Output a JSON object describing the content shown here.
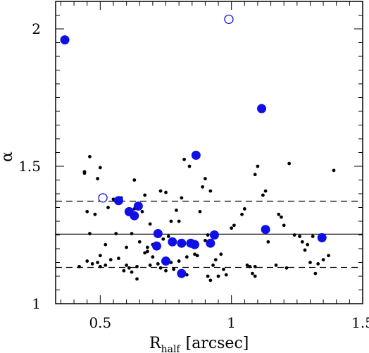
{
  "chart_data": {
    "type": "scatter",
    "xlabel": "R",
    "xlabel_subscript": "half",
    "xlabel_unit": "[arcsec]",
    "ylabel": "α",
    "xlim": [
      0.33,
      1.5
    ],
    "ylim": [
      1.0,
      2.1
    ],
    "x_ticks_major": [
      0.5,
      1.0,
      1.5
    ],
    "x_tick_labels": [
      "0.5",
      "1",
      "1.5"
    ],
    "y_ticks_major": [
      1.0,
      1.5,
      2.0
    ],
    "y_tick_labels": [
      "1",
      "1.5",
      "2"
    ],
    "grid": false,
    "reference_lines": [
      {
        "y": 1.373,
        "style": "dashed"
      },
      {
        "y": 1.253,
        "style": "solid"
      },
      {
        "y": 1.132,
        "style": "dashed"
      }
    ],
    "series": [
      {
        "marker": "small-dot",
        "color": "#000000",
        "points": [
          [
            0.42,
            1.135
          ],
          [
            0.44,
            1.48
          ],
          [
            0.44,
            1.475
          ],
          [
            0.45,
            1.155
          ],
          [
            0.45,
            1.335
          ],
          [
            0.46,
            1.535
          ],
          [
            0.46,
            1.255
          ],
          [
            0.47,
            1.145
          ],
          [
            0.48,
            1.325
          ],
          [
            0.49,
            1.15
          ],
          [
            0.49,
            1.455
          ],
          [
            0.5,
            1.135
          ],
          [
            0.5,
            1.495
          ],
          [
            0.5,
            1.175
          ],
          [
            0.52,
            1.14
          ],
          [
            0.52,
            1.215
          ],
          [
            0.53,
            1.35
          ],
          [
            0.54,
            1.16
          ],
          [
            0.55,
            1.38
          ],
          [
            0.56,
            1.255
          ],
          [
            0.57,
            1.165
          ],
          [
            0.58,
            1.385
          ],
          [
            0.59,
            1.12
          ],
          [
            0.6,
            1.14
          ],
          [
            0.6,
            1.205
          ],
          [
            0.61,
            1.13
          ],
          [
            0.62,
            1.115
          ],
          [
            0.62,
            1.255
          ],
          [
            0.63,
            1.345
          ],
          [
            0.63,
            1.45
          ],
          [
            0.64,
            1.09
          ],
          [
            0.64,
            1.135
          ],
          [
            0.65,
            1.225
          ],
          [
            0.66,
            1.335
          ],
          [
            0.67,
            1.185
          ],
          [
            0.67,
            1.395
          ],
          [
            0.68,
            1.19
          ],
          [
            0.68,
            1.205
          ],
          [
            0.69,
            1.29
          ],
          [
            0.69,
            1.14
          ],
          [
            0.7,
            1.215
          ],
          [
            0.7,
            1.17
          ],
          [
            0.72,
            1.145
          ],
          [
            0.73,
            1.13
          ],
          [
            0.73,
            1.41
          ],
          [
            0.74,
            1.235
          ],
          [
            0.75,
            1.405
          ],
          [
            0.75,
            1.12
          ],
          [
            0.76,
            1.245
          ],
          [
            0.77,
            1.3
          ],
          [
            0.77,
            1.15
          ],
          [
            0.78,
            1.125
          ],
          [
            0.79,
            1.34
          ],
          [
            0.8,
            1.3
          ],
          [
            0.8,
            1.155
          ],
          [
            0.81,
            1.385
          ],
          [
            0.82,
            1.525
          ],
          [
            0.83,
            1.105
          ],
          [
            0.83,
            1.17
          ],
          [
            0.84,
            1.5
          ],
          [
            0.86,
            1.18
          ],
          [
            0.87,
            1.175
          ],
          [
            0.88,
            1.335
          ],
          [
            0.89,
            1.425
          ],
          [
            0.9,
            1.23
          ],
          [
            0.9,
            1.455
          ],
          [
            0.91,
            1.1
          ],
          [
            0.91,
            1.25
          ],
          [
            0.92,
            1.085
          ],
          [
            0.92,
            1.41
          ],
          [
            0.93,
            1.14
          ],
          [
            0.94,
            1.16
          ],
          [
            0.95,
            1.1
          ],
          [
            0.96,
            1.18
          ],
          [
            0.97,
            1.125
          ],
          [
            0.98,
            1.105
          ],
          [
            1.0,
            1.275
          ],
          [
            1.01,
            1.285
          ],
          [
            1.04,
            1.325
          ],
          [
            1.05,
            1.345
          ],
          [
            1.06,
            1.14
          ],
          [
            1.07,
            1.135
          ],
          [
            1.08,
            1.11
          ],
          [
            1.09,
            1.135
          ],
          [
            1.09,
            1.47
          ],
          [
            1.09,
            1.1
          ],
          [
            1.1,
            1.5
          ],
          [
            1.12,
            1.395
          ],
          [
            1.13,
            1.41
          ],
          [
            1.14,
            1.225
          ],
          [
            1.17,
            1.14
          ],
          [
            1.18,
            1.325
          ],
          [
            1.19,
            1.315
          ],
          [
            1.2,
            1.285
          ],
          [
            1.21,
            1.13
          ],
          [
            1.22,
            1.51
          ],
          [
            1.24,
            1.25
          ],
          [
            1.26,
            1.245
          ],
          [
            1.27,
            1.225
          ],
          [
            1.28,
            1.195
          ],
          [
            1.29,
            1.215
          ],
          [
            1.3,
            1.15
          ],
          [
            1.31,
            1.245
          ],
          [
            1.32,
            1.11
          ],
          [
            1.33,
            1.145
          ],
          [
            1.34,
            1.235
          ],
          [
            1.35,
            1.16
          ],
          [
            1.37,
            1.175
          ],
          [
            1.39,
            1.485
          ]
        ]
      },
      {
        "marker": "large-filled-circle",
        "color": "#0f0fe6",
        "points": [
          [
            0.365,
            1.96
          ],
          [
            0.57,
            1.375
          ],
          [
            0.61,
            1.335
          ],
          [
            0.63,
            1.32
          ],
          [
            0.645,
            1.355
          ],
          [
            0.72,
            1.255
          ],
          [
            0.715,
            1.21
          ],
          [
            0.75,
            1.155
          ],
          [
            0.775,
            1.225
          ],
          [
            0.81,
            1.22
          ],
          [
            0.81,
            1.11
          ],
          [
            0.845,
            1.22
          ],
          [
            0.86,
            1.215
          ],
          [
            0.865,
            1.54
          ],
          [
            0.92,
            1.22
          ],
          [
            0.935,
            1.25
          ],
          [
            1.115,
            1.71
          ],
          [
            1.13,
            1.27
          ],
          [
            1.345,
            1.24
          ]
        ]
      },
      {
        "marker": "large-open-circle",
        "color": "#0f0fe6",
        "points": [
          [
            0.51,
            1.385
          ],
          [
            0.99,
            2.035
          ]
        ]
      }
    ]
  }
}
